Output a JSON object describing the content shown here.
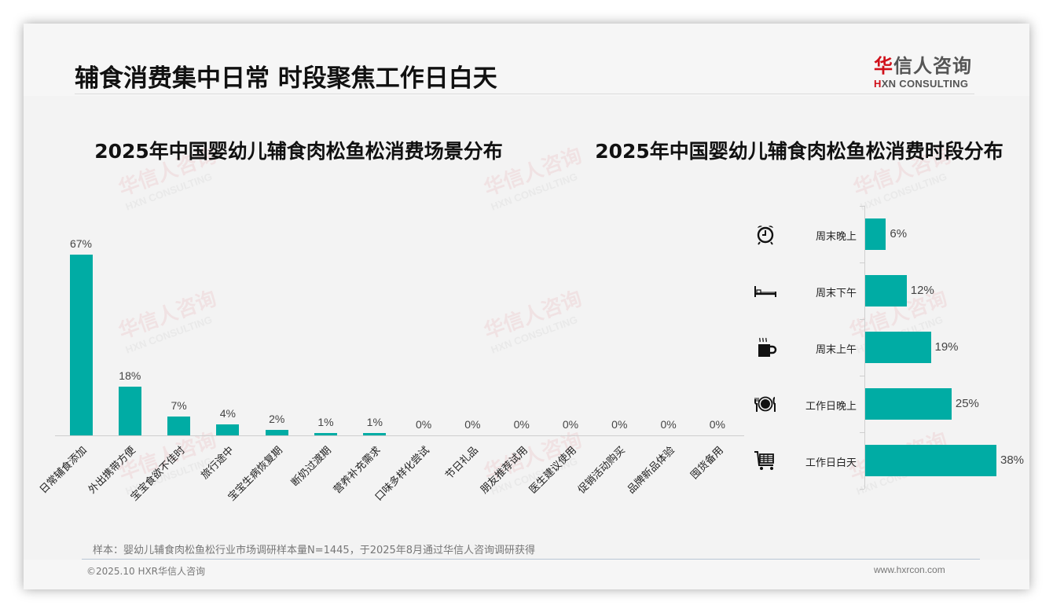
{
  "page": {
    "title": "辅食消费集中日常 时段聚焦工作日白天",
    "logo": {
      "cn_brand": "华",
      "cn_rest": "信人咨询",
      "en_mark": "H",
      "en_rest": "XN CONSULTING"
    },
    "watermark": {
      "cn": "华信人咨询",
      "en": "HXN CONSULTING"
    },
    "sample_note": "样本：婴幼儿辅食肉松鱼松行业市场调研样本量N=1445，于2025年8月通过华信人咨询调研获得",
    "copyright": "©2025.10 HXR华信人咨询",
    "website": "www.hxrcon.com"
  },
  "colors": {
    "bar": "#00aca4",
    "brand_red": "#d0101a",
    "text": "#111111"
  },
  "chart_data": [
    {
      "type": "bar",
      "title": "2025年中国婴幼儿辅食肉松鱼松消费场景分布",
      "categories": [
        "日常辅食添加",
        "外出携带方便",
        "宝宝食欲不佳时",
        "旅行途中",
        "宝宝生病恢复期",
        "断奶过渡期",
        "营养补充需求",
        "口味多样化尝试",
        "节日礼品",
        "朋友推荐试用",
        "医生建议使用",
        "促销活动购买",
        "品牌新品体验",
        "囤货备用"
      ],
      "values": [
        67,
        18,
        7,
        4,
        2,
        1,
        1,
        0,
        0,
        0,
        0,
        0,
        0,
        0
      ],
      "labels": [
        "67%",
        "18%",
        "7%",
        "4%",
        "2%",
        "1%",
        "1%",
        "0%",
        "0%",
        "0%",
        "0%",
        "0%",
        "0%",
        "0%"
      ],
      "xlabel": "",
      "ylabel": "",
      "ylim": [
        0,
        70
      ],
      "grid": false,
      "legend": "none"
    },
    {
      "type": "bar",
      "orientation": "horizontal",
      "title": "2025年中国婴幼儿辅食肉松鱼松消费时段分布",
      "categories": [
        "周末晚上",
        "周末下午",
        "周末上午",
        "工作日晚上",
        "工作日白天"
      ],
      "values": [
        6,
        12,
        19,
        25,
        38
      ],
      "labels": [
        "6%",
        "12%",
        "19%",
        "25%",
        "38%"
      ],
      "icons": [
        "alarm-clock-icon",
        "bed-icon",
        "coffee-mug-icon",
        "plate-cutlery-icon",
        "shopping-cart-icon"
      ],
      "xlabel": "",
      "ylabel": "",
      "xlim": [
        0,
        40
      ],
      "grid": false,
      "legend": "none"
    }
  ]
}
